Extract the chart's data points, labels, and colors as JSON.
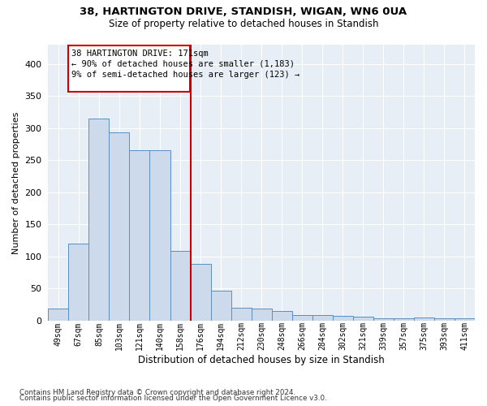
{
  "title": "38, HARTINGTON DRIVE, STANDISH, WIGAN, WN6 0UA",
  "subtitle": "Size of property relative to detached houses in Standish",
  "xlabel": "Distribution of detached houses by size in Standish",
  "ylabel": "Number of detached properties",
  "footer1": "Contains HM Land Registry data © Crown copyright and database right 2024.",
  "footer2": "Contains public sector information licensed under the Open Government Licence v3.0.",
  "bar_color": "#ccdaeb",
  "bar_edge_color": "#5a8fc0",
  "annotation_box_edge_color": "#cc0000",
  "vline_color": "#cc0000",
  "background_color": "#e8eef5",
  "annotation_title": "38 HARTINGTON DRIVE: 171sqm",
  "annotation_line2": "← 90% of detached houses are smaller (1,183)",
  "annotation_line3": "9% of semi-detached houses are larger (123) →",
  "vline_x_index": 7,
  "categories": [
    "49sqm",
    "67sqm",
    "85sqm",
    "103sqm",
    "121sqm",
    "140sqm",
    "158sqm",
    "176sqm",
    "194sqm",
    "212sqm",
    "230sqm",
    "248sqm",
    "266sqm",
    "284sqm",
    "302sqm",
    "321sqm",
    "339sqm",
    "357sqm",
    "375sqm",
    "393sqm",
    "411sqm"
  ],
  "values": [
    19,
    120,
    315,
    293,
    265,
    265,
    108,
    88,
    46,
    20,
    19,
    15,
    9,
    8,
    7,
    6,
    3,
    3,
    5,
    4,
    3
  ],
  "ylim": [
    0,
    430
  ],
  "yticks": [
    0,
    50,
    100,
    150,
    200,
    250,
    300,
    350,
    400
  ],
  "grid_color": "#ffffff",
  "fig_width": 6.0,
  "fig_height": 5.0,
  "dpi": 100
}
